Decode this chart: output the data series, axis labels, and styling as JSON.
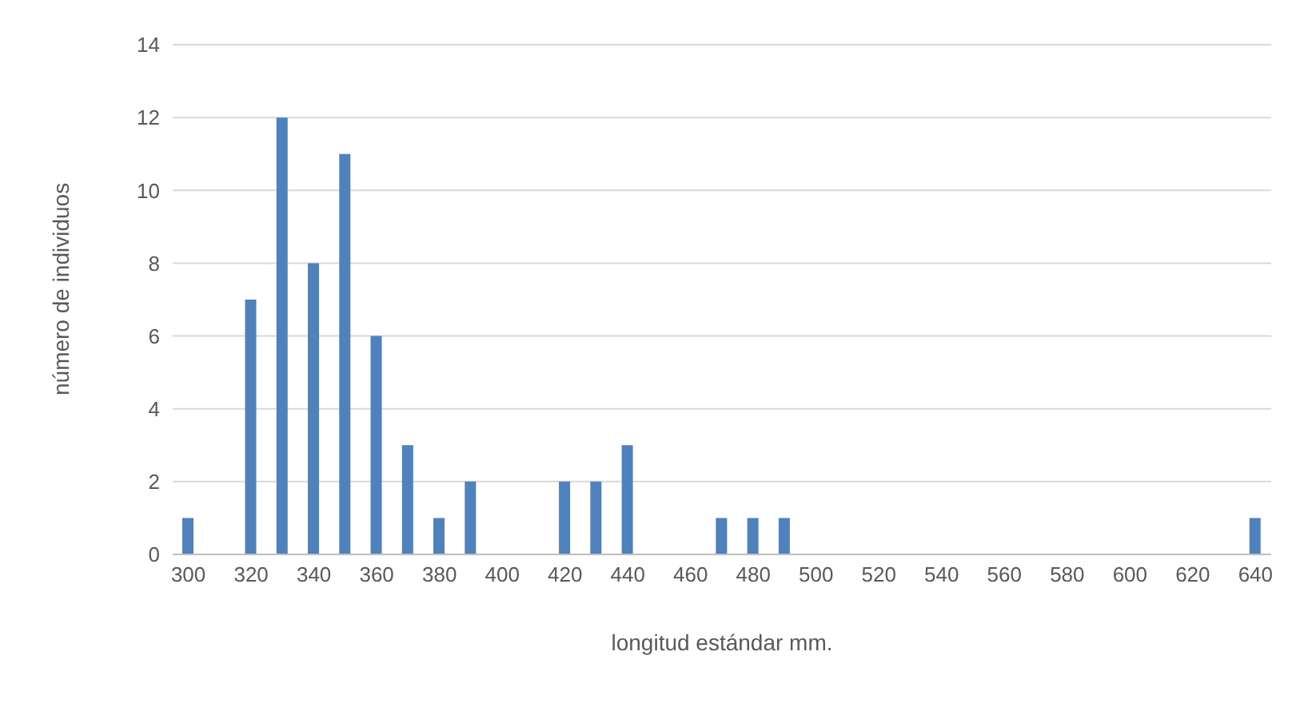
{
  "chart_data": {
    "type": "bar",
    "xlabel": "longitud estándar mm.",
    "ylabel": "número de individuos",
    "categories": [
      "300",
      null,
      "320",
      null,
      "340",
      null,
      "360",
      null,
      "380",
      null,
      "400",
      null,
      "420",
      null,
      "440",
      null,
      "460",
      null,
      "480",
      null,
      "500",
      null,
      "520",
      null,
      "540",
      null,
      "560",
      null,
      "580",
      null,
      "600",
      null,
      "620",
      null,
      "640"
    ],
    "values": [
      1,
      null,
      7,
      12,
      8,
      11,
      6,
      3,
      1,
      2,
      null,
      null,
      2,
      2,
      3,
      null,
      null,
      1,
      1,
      1,
      null,
      null,
      null,
      null,
      null,
      null,
      null,
      null,
      null,
      null,
      null,
      null,
      null,
      null,
      1
    ],
    "color": "#4f81bd",
    "ylim": [
      0,
      14
    ],
    "yticks": [
      0,
      2,
      4,
      6,
      8,
      10,
      12,
      14
    ],
    "grid": "y",
    "legend": false
  }
}
